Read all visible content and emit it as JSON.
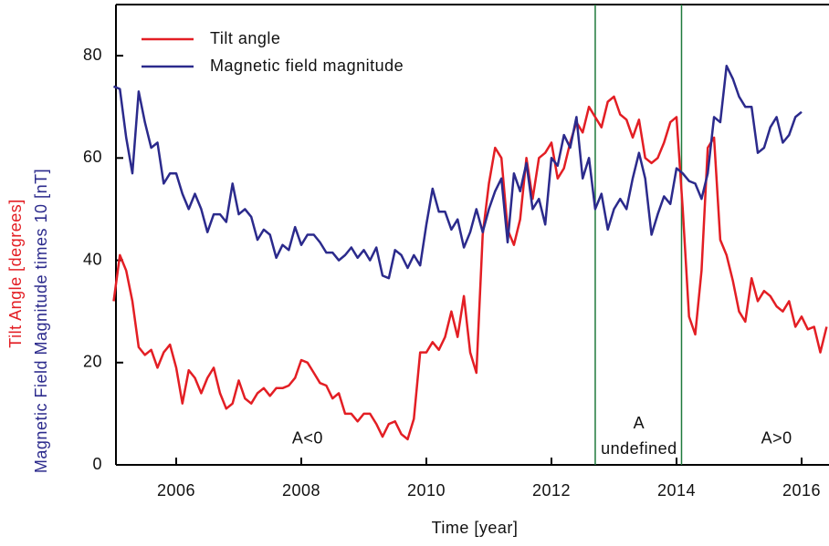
{
  "chart_data": {
    "type": "line",
    "xlabel": "Time [year]",
    "ylabels": [
      {
        "text": "Tilt Angle [degrees]",
        "color": "#e31e24"
      },
      {
        "text": "Magnetic Field Magnitude times 10 [nT]",
        "color": "#2b2a8c"
      }
    ],
    "xlim": [
      2005,
      2016.4
    ],
    "ylim": [
      0,
      90
    ],
    "xticks": [
      2006,
      2008,
      2010,
      2012,
      2014,
      2016
    ],
    "yticks": [
      0,
      20,
      40,
      60,
      80
    ],
    "legend": "upper left",
    "vlines": [
      2012.7,
      2014.08
    ],
    "vline_color": "#1f7a3c",
    "annotations": [
      {
        "text": "A<0",
        "x": 2008.1,
        "y": 5
      },
      {
        "text": "A",
        "x": 2013.4,
        "y": 8
      },
      {
        "text": "undefined",
        "x": 2013.4,
        "y": 3
      },
      {
        "text": "A>0",
        "x": 2015.6,
        "y": 5
      }
    ],
    "x": [
      2005.0,
      2005.1,
      2005.2,
      2005.3,
      2005.4,
      2005.5,
      2005.6,
      2005.7,
      2005.8,
      2005.9,
      2006.0,
      2006.1,
      2006.2,
      2006.3,
      2006.4,
      2006.5,
      2006.6,
      2006.7,
      2006.8,
      2006.9,
      2007.0,
      2007.1,
      2007.2,
      2007.3,
      2007.4,
      2007.5,
      2007.6,
      2007.7,
      2007.8,
      2007.9,
      2008.0,
      2008.1,
      2008.2,
      2008.3,
      2008.4,
      2008.5,
      2008.6,
      2008.7,
      2008.8,
      2008.9,
      2009.0,
      2009.1,
      2009.2,
      2009.3,
      2009.4,
      2009.5,
      2009.6,
      2009.7,
      2009.8,
      2009.9,
      2010.0,
      2010.1,
      2010.2,
      2010.3,
      2010.4,
      2010.5,
      2010.6,
      2010.7,
      2010.8,
      2010.9,
      2011.0,
      2011.1,
      2011.2,
      2011.3,
      2011.4,
      2011.5,
      2011.6,
      2011.7,
      2011.8,
      2011.9,
      2012.0,
      2012.1,
      2012.2,
      2012.3,
      2012.4,
      2012.5,
      2012.6,
      2012.7,
      2012.8,
      2012.9,
      2013.0,
      2013.1,
      2013.2,
      2013.3,
      2013.4,
      2013.5,
      2013.6,
      2013.7,
      2013.8,
      2013.9,
      2014.0,
      2014.1,
      2014.2,
      2014.3,
      2014.4,
      2014.5,
      2014.6,
      2014.7,
      2014.8,
      2014.9,
      2015.0,
      2015.1,
      2015.2,
      2015.3,
      2015.4,
      2015.5,
      2015.6,
      2015.7,
      2015.8,
      2015.9,
      2016.0,
      2016.1,
      2016.2,
      2016.3,
      2016.4
    ],
    "series": [
      {
        "name": "Tilt angle",
        "color": "#e31e24",
        "values": [
          32,
          41,
          38,
          32,
          23,
          21.5,
          22.5,
          19,
          22,
          23.5,
          19,
          12,
          18.5,
          17,
          14,
          17,
          19,
          14,
          11,
          12,
          16.5,
          13,
          12,
          14,
          15,
          13.5,
          15,
          15,
          15.5,
          17,
          20.5,
          20,
          18,
          16,
          15.5,
          13,
          14,
          10,
          10,
          8.5,
          10,
          10,
          8,
          5.5,
          8,
          8.5,
          6,
          5,
          9,
          22,
          22,
          24,
          22.5,
          25,
          30,
          25,
          33,
          22,
          18,
          45,
          55,
          62,
          60,
          46,
          43,
          48,
          60,
          52,
          60,
          61,
          63,
          56,
          58,
          63,
          67,
          65,
          70,
          68,
          66,
          71,
          72,
          68.5,
          67.5,
          64,
          67.5,
          60,
          59,
          60,
          63,
          67,
          68,
          50,
          29,
          25.5,
          38,
          62,
          64,
          44,
          41,
          36,
          30,
          28,
          36.5,
          32,
          34,
          33,
          31,
          30,
          32,
          27,
          29,
          26.5,
          27,
          22,
          27
        ]
      },
      {
        "name": "Magnetic field magnitude",
        "color": "#2b2a8c",
        "values": [
          74,
          73.5,
          64,
          57,
          73,
          67,
          62,
          63,
          55,
          57,
          57,
          53,
          50,
          53,
          50,
          45.5,
          49,
          49,
          47.5,
          55,
          49,
          50,
          48.5,
          44,
          46,
          45,
          40.5,
          43,
          42,
          46.5,
          43,
          45,
          45,
          43.5,
          41.5,
          41.5,
          40,
          41,
          42.5,
          40.5,
          42,
          40,
          42.5,
          37,
          36.5,
          42,
          41,
          38.5,
          41,
          39,
          47,
          54,
          49.5,
          49.5,
          46,
          48,
          42.5,
          45.5,
          50,
          45.5,
          50,
          53.5,
          56,
          43.5,
          57,
          53.5,
          59,
          50,
          52,
          47,
          60,
          58.5,
          64.5,
          62,
          68,
          56,
          60,
          50,
          53,
          46,
          50,
          52,
          50,
          56,
          61,
          56,
          45,
          49,
          52.5,
          51,
          58,
          57,
          55.5,
          55,
          52,
          57,
          68,
          67,
          78,
          75.5,
          72,
          70,
          70,
          61,
          62,
          66,
          68,
          63,
          64.5,
          68,
          69,
          null,
          null,
          null,
          null
        ]
      }
    ]
  }
}
